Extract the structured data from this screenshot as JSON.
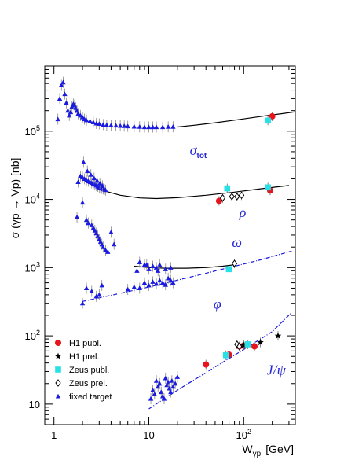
{
  "chart_data": {
    "type": "scatter",
    "title": "",
    "xlabel": {
      "main": "W",
      "sub": "γp",
      "unit": "[GeV]"
    },
    "ylabel": "σ (γp → Vp)  [nb]",
    "xscale": "log",
    "yscale": "log",
    "xlim": [
      0.8,
      350
    ],
    "ylim": [
      5,
      900000
    ],
    "x_ticks": [
      {
        "value": 1,
        "label": "1"
      },
      {
        "value": 10,
        "label": "10"
      },
      {
        "value": 100,
        "label": "10",
        "sup": "2"
      }
    ],
    "y_ticks": [
      {
        "value": 10,
        "label": "10"
      },
      {
        "value": 100,
        "label": "10",
        "sup": "2"
      },
      {
        "value": 1000,
        "label": "10",
        "sup": "3"
      },
      {
        "value": 10000,
        "label": "10",
        "sup": "4"
      },
      {
        "value": 100000,
        "label": "10",
        "sup": "5"
      }
    ],
    "processes": [
      {
        "name": "tot",
        "label": "σ",
        "sub": "tot",
        "label_at": [
          27,
          45000
        ],
        "curve": {
          "style": "solid",
          "x": [
            20,
            30,
            50,
            80,
            120,
            180,
            250,
            350
          ],
          "y": [
            115000,
            122000,
            133000,
            145000,
            157000,
            170000,
            180000,
            192000
          ]
        },
        "fixed_target": {
          "x": [
            1.1,
            1.15,
            1.2,
            1.25,
            1.3,
            1.35,
            1.4,
            1.45,
            1.5,
            1.55,
            1.6,
            1.65,
            1.7,
            1.75,
            1.8,
            1.9,
            2.0,
            2.1,
            2.2,
            2.4,
            2.6,
            2.8,
            3.0,
            3.3,
            3.6,
            4.0,
            4.5,
            5.0,
            5.5,
            6.0,
            7.0,
            8.0,
            9.0,
            10.0,
            11.0,
            12.0,
            14.0,
            16.0,
            18.0
          ],
          "y": [
            150000,
            300000,
            470000,
            520000,
            350000,
            260000,
            200000,
            170000,
            190000,
            230000,
            250000,
            240000,
            220000,
            200000,
            180000,
            170000,
            160000,
            150000,
            145000,
            140000,
            135000,
            130000,
            128000,
            125000,
            123000,
            122000,
            121000,
            120000,
            119000,
            118000,
            117000,
            116000,
            115000,
            115000,
            115000,
            115000,
            115000,
            116000,
            116000
          ]
        },
        "h1_publ": {
          "x": [
            200
          ],
          "y": [
            165000
          ]
        },
        "zeus_publ": {
          "x": [
            180
          ],
          "y": [
            143000
          ]
        }
      },
      {
        "name": "rho",
        "label": "ρ",
        "sub": "",
        "label_at": [
          90,
          5500
        ],
        "curve": {
          "style": "solid",
          "x": [
            3,
            5,
            8,
            12,
            20,
            40,
            80,
            150,
            300
          ],
          "y": [
            14000,
            11500,
            10500,
            10300,
            10600,
            11500,
            12800,
            14300,
            16000
          ]
        },
        "fixed_target": {
          "x": [
            1.8,
            1.9,
            2.0,
            2.1,
            2.2,
            2.3,
            2.4,
            2.5,
            2.6,
            2.7,
            2.8,
            2.9,
            3.0,
            3.1,
            3.2,
            3.3,
            3.4,
            3.5,
            2.05,
            2.25,
            2.45,
            2.65,
            2.85,
            3.05,
            3.25
          ],
          "y": [
            18000,
            22000,
            21000,
            20000,
            19000,
            18500,
            18000,
            17500,
            17000,
            16500,
            16000,
            15500,
            15000,
            14800,
            14500,
            14200,
            14000,
            13700,
            35000,
            26000,
            23000,
            20500,
            18800,
            17200,
            15800
          ]
        },
        "h1_publ": {
          "x": [
            55,
            190
          ],
          "y": [
            9500,
            13500
          ]
        },
        "zeus_publ": {
          "x": [
            67,
            180
          ],
          "y": [
            14500,
            15000
          ]
        },
        "zeus_prel": {
          "x": [
            60,
            75,
            85,
            95
          ],
          "y": [
            10500,
            11000,
            11000,
            11500
          ]
        }
      },
      {
        "name": "rho_lowW",
        "label": "",
        "sub": "",
        "label_at": [
          0,
          0
        ],
        "curve": {
          "style": "none",
          "x": [],
          "y": []
        },
        "fixed_target": {
          "x": [
            1.75,
            2.0,
            2.2,
            2.3,
            2.5,
            2.6,
            2.7,
            2.8,
            2.9,
            3.0,
            3.1,
            3.2,
            3.3,
            3.5,
            3.7,
            4.0,
            4.3
          ],
          "y": [
            5500,
            9000,
            5000,
            4500,
            4200,
            3800,
            3500,
            3200,
            2900,
            2600,
            2400,
            2200,
            2000,
            1800,
            1700,
            3300,
            2200
          ]
        }
      },
      {
        "name": "omega",
        "label": "ω",
        "sub": "",
        "label_at": [
          75,
          2000
        ],
        "curve": {
          "style": "solid",
          "x": [
            7,
            10,
            15,
            25,
            40,
            60,
            80
          ],
          "y": [
            1050,
            1000,
            980,
            980,
            1000,
            1050,
            1100
          ]
        },
        "fixed_target": {
          "x": [
            7.5,
            8.0,
            9.0,
            10.0,
            11.0,
            12.0,
            13.0,
            15.0,
            17.0
          ],
          "y": [
            900,
            1200,
            1100,
            950,
            1050,
            1000,
            1100,
            950,
            1000
          ]
        },
        "zeus_publ": {
          "x": [
            70
          ],
          "y": [
            950
          ]
        },
        "zeus_prel": {
          "x": [
            80
          ],
          "y": [
            1150
          ]
        }
      },
      {
        "name": "phi",
        "label": "φ",
        "sub": "",
        "label_at": [
          48,
          250
        ],
        "curve": {
          "style": "dashdot",
          "x": [
            2,
            5,
            10,
            30,
            70,
            150,
            320
          ],
          "y": [
            320,
            420,
            520,
            750,
            1000,
            1300,
            1750
          ]
        },
        "fixed_target": {
          "x": [
            2.0,
            2.2,
            2.5,
            2.8,
            3.0,
            3.2,
            6.0,
            7.0,
            8.0,
            9.0,
            10.0,
            11.0,
            12.0,
            13.0,
            14.0,
            15.0,
            16.0,
            17.0,
            18.0,
            9.5,
            12.5
          ],
          "y": [
            300,
            500,
            450,
            380,
            400,
            550,
            480,
            520,
            500,
            600,
            550,
            620,
            580,
            650,
            600,
            560,
            700,
            650,
            600,
            1100,
            900
          ]
        },
        "zeus_publ": {
          "x": [
            70
          ],
          "y": [
            950
          ]
        }
      },
      {
        "name": "jpsi",
        "label": "J/ψ",
        "sub": "",
        "label_at": [
          175,
          27
        ],
        "curve": {
          "style": "dashdot",
          "x": [
            10,
            20,
            50,
            100,
            200,
            320
          ],
          "y": [
            8.5,
            16,
            35,
            63,
            115,
            220
          ]
        },
        "fixed_target": {
          "x": [
            10.5,
            11.0,
            11.5,
            12.0,
            12.5,
            13.0,
            13.5,
            14.0,
            14.5,
            15.0,
            15.5,
            16.0,
            16.5,
            17.0,
            17.5,
            18.0,
            19.0,
            20.0
          ],
          "y": [
            12,
            16,
            14,
            22,
            18,
            20,
            15,
            13,
            12,
            24,
            19,
            21,
            17,
            15,
            22,
            18,
            20,
            25
          ]
        },
        "h1_publ": {
          "x": [
            40,
            70,
            90,
            100,
            130
          ],
          "y": [
            38,
            53,
            70,
            72,
            70
          ]
        },
        "h1_prel": {
          "x": [
            100,
            150,
            230
          ],
          "y": [
            73,
            80,
            100
          ]
        },
        "zeus_publ": {
          "x": [
            65,
            110
          ],
          "y": [
            52,
            75
          ]
        },
        "zeus_prel": {
          "x": [
            85,
            90
          ],
          "y": [
            75,
            70
          ]
        }
      }
    ],
    "legend": {
      "position": "bottom-left",
      "entries": [
        {
          "key": "h1_publ",
          "label": "H1 publ.",
          "marker": "circle",
          "color": "#e8141c"
        },
        {
          "key": "h1_prel",
          "label": "H1 prel.",
          "marker": "star",
          "color": "#000000"
        },
        {
          "key": "zeus_publ",
          "label": "Zeus publ.",
          "marker": "square",
          "color": "#29e0e6"
        },
        {
          "key": "zeus_prel",
          "label": "Zeus prel.",
          "marker": "diamond-open",
          "color": "#000000"
        },
        {
          "key": "fixed_target",
          "label": "fixed target",
          "marker": "triangle",
          "color": "#1a1ae0"
        }
      ]
    },
    "colors": {
      "fixed_target": "#1a1ae0",
      "h1_publ": "#e8141c",
      "h1_prel": "#000000",
      "zeus_publ": "#29e0e6",
      "zeus_prel": "#000000",
      "label": "#2a2ad8",
      "curve": "#000000",
      "dashcurve": "#1a1ae0"
    }
  }
}
